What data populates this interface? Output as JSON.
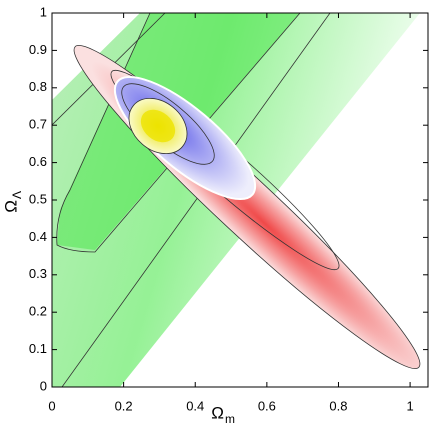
{
  "chart_data": {
    "type": "contour",
    "x_label": "Ω",
    "x_label_sub": "m",
    "y_label": "Ω",
    "y_label_sub": "Λ",
    "xlim": [
      0,
      1.05
    ],
    "ylim": [
      0,
      1
    ],
    "xticks": [
      0,
      0.2,
      0.4,
      0.6,
      0.8,
      1
    ],
    "yticks": [
      0,
      0.1,
      0.2,
      0.3,
      0.4,
      0.5,
      0.6,
      0.7,
      0.8,
      0.9,
      1
    ]
  }
}
